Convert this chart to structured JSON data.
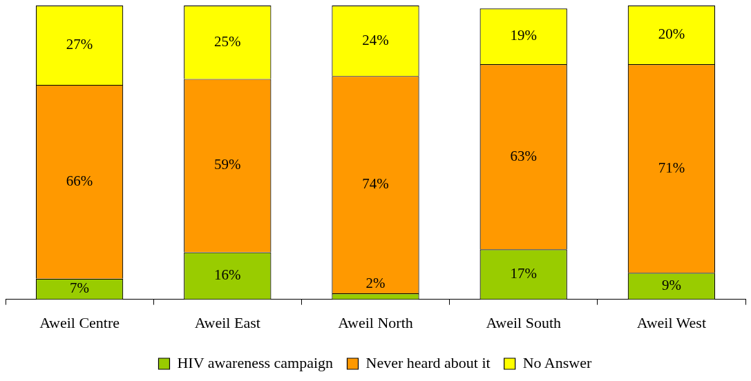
{
  "chart_data": {
    "type": "bar",
    "stacked": true,
    "categories": [
      "Aweil Centre",
      "Aweil East",
      "Aweil North",
      "Aweil South",
      "Aweil West"
    ],
    "series": [
      {
        "name": "HIV awareness campaign",
        "color": "#99cc00",
        "values": [
          7,
          16,
          2,
          17,
          9
        ],
        "value_labels": [
          "7%",
          "16%",
          "2%",
          "17%",
          "9%"
        ]
      },
      {
        "name": "Never heard about it",
        "color": "#ff9900",
        "values": [
          66,
          59,
          74,
          63,
          71
        ],
        "value_labels": [
          "66%",
          "59%",
          "74%",
          "63%",
          "71%"
        ]
      },
      {
        "name": "No Answer",
        "color": "#ffff00",
        "values": [
          27,
          25,
          24,
          19,
          20
        ],
        "value_labels": [
          "27%",
          "25%",
          "24%",
          "19%",
          "20%"
        ]
      }
    ],
    "legend": "bottom",
    "grid": false
  }
}
